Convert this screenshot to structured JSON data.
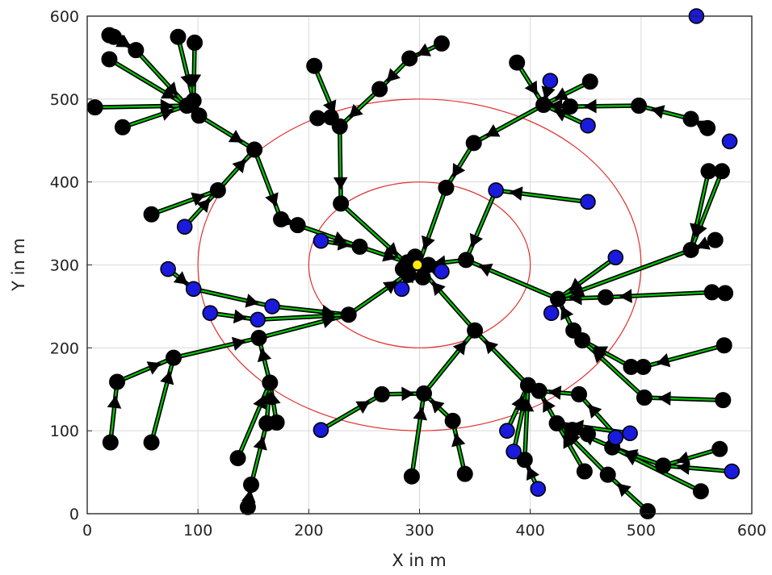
{
  "chart_data": {
    "type": "scatter",
    "xlabel": "X in m",
    "ylabel": "Y in m",
    "xlim": [
      0,
      600
    ],
    "ylim": [
      0,
      600
    ],
    "xticks": [
      0,
      100,
      200,
      300,
      400,
      500,
      600
    ],
    "yticks": [
      0,
      100,
      200,
      300,
      400,
      500,
      600
    ],
    "grid": true,
    "center": [
      300,
      300
    ],
    "circles": [
      {
        "cx": 300,
        "cy": 300,
        "r": 100,
        "color": "#e03030"
      },
      {
        "cx": 300,
        "cy": 300,
        "r": 200,
        "color": "#e03030"
      }
    ],
    "sink": [
      298,
      300
    ],
    "colors": {
      "link": "#00c800",
      "arrow": "#000000",
      "black_node": "#000000",
      "blue_node": "#1a1adc",
      "sink": "#ffee00"
    },
    "blue_nodes": [
      [
        550,
        600
      ],
      [
        418,
        522
      ],
      [
        452,
        468
      ],
      [
        580,
        449
      ],
      [
        369,
        390
      ],
      [
        452,
        376
      ],
      [
        88,
        346
      ],
      [
        73,
        295
      ],
      [
        96,
        271
      ],
      [
        111,
        242
      ],
      [
        167,
        250
      ],
      [
        154,
        234
      ],
      [
        211,
        329
      ],
      [
        284,
        271
      ],
      [
        320,
        292
      ],
      [
        477,
        309
      ],
      [
        419,
        242
      ],
      [
        490,
        97
      ],
      [
        477,
        92
      ],
      [
        379,
        100
      ],
      [
        385,
        75
      ],
      [
        407,
        30
      ],
      [
        211,
        101
      ],
      [
        582,
        51
      ]
    ],
    "black_nodes": [
      [
        297,
        302
      ],
      [
        285,
        295
      ],
      [
        290,
        288
      ],
      [
        303,
        285
      ],
      [
        308,
        300
      ],
      [
        296,
        310
      ],
      [
        324,
        393
      ],
      [
        349,
        447
      ],
      [
        412,
        493
      ],
      [
        454,
        521
      ],
      [
        436,
        491
      ],
      [
        388,
        544
      ],
      [
        498,
        492
      ],
      [
        545,
        476
      ],
      [
        560,
        465
      ],
      [
        342,
        306
      ],
      [
        425,
        259
      ],
      [
        468,
        261
      ],
      [
        545,
        318
      ],
      [
        567,
        330
      ],
      [
        561,
        413
      ],
      [
        573,
        413
      ],
      [
        564,
        267
      ],
      [
        576,
        266
      ],
      [
        350,
        221
      ],
      [
        439,
        221
      ],
      [
        447,
        209
      ],
      [
        398,
        155
      ],
      [
        408,
        148
      ],
      [
        491,
        177
      ],
      [
        502,
        177
      ],
      [
        575,
        203
      ],
      [
        503,
        140
      ],
      [
        574,
        137
      ],
      [
        444,
        144
      ],
      [
        424,
        109
      ],
      [
        438,
        101
      ],
      [
        452,
        96
      ],
      [
        474,
        80
      ],
      [
        520,
        58
      ],
      [
        571,
        78
      ],
      [
        554,
        27
      ],
      [
        506,
        3
      ],
      [
        470,
        47
      ],
      [
        449,
        51
      ],
      [
        395,
        65
      ],
      [
        304,
        145
      ],
      [
        266,
        144
      ],
      [
        330,
        112
      ],
      [
        293,
        45
      ],
      [
        341,
        48
      ],
      [
        236,
        240
      ],
      [
        155,
        212
      ],
      [
        165,
        158
      ],
      [
        171,
        110
      ],
      [
        162,
        109
      ],
      [
        136,
        67
      ],
      [
        148,
        35
      ],
      [
        145,
        8
      ],
      [
        78,
        188
      ],
      [
        58,
        86
      ],
      [
        21,
        86
      ],
      [
        27,
        159
      ],
      [
        289,
        303
      ],
      [
        246,
        322
      ],
      [
        190,
        348
      ],
      [
        175,
        355
      ],
      [
        118,
        390
      ],
      [
        58,
        361
      ],
      [
        151,
        439
      ],
      [
        229,
        374
      ],
      [
        228,
        467
      ],
      [
        220,
        478
      ],
      [
        208,
        477
      ],
      [
        205,
        540
      ],
      [
        264,
        512
      ],
      [
        291,
        549
      ],
      [
        320,
        567
      ],
      [
        101,
        480
      ],
      [
        90,
        492
      ],
      [
        96,
        498
      ],
      [
        7,
        490
      ],
      [
        32,
        466
      ],
      [
        20,
        548
      ],
      [
        20,
        577
      ],
      [
        24,
        575
      ],
      [
        44,
        559
      ],
      [
        82,
        575
      ],
      [
        97,
        568
      ]
    ],
    "links": [
      [
        [
          550,
          600
        ],
        [
          550,
          600
        ]
      ],
      [
        [
          324,
          393
        ],
        [
          300,
          303
        ]
      ],
      [
        [
          349,
          447
        ],
        [
          324,
          393
        ]
      ],
      [
        [
          412,
          493
        ],
        [
          349,
          447
        ]
      ],
      [
        [
          454,
          521
        ],
        [
          412,
          493
        ]
      ],
      [
        [
          418,
          522
        ],
        [
          412,
          493
        ]
      ],
      [
        [
          436,
          491
        ],
        [
          412,
          493
        ]
      ],
      [
        [
          452,
          468
        ],
        [
          412,
          493
        ]
      ],
      [
        [
          498,
          492
        ],
        [
          436,
          491
        ]
      ],
      [
        [
          545,
          476
        ],
        [
          498,
          492
        ]
      ],
      [
        [
          560,
          465
        ],
        [
          545,
          476
        ]
      ],
      [
        [
          388,
          544
        ],
        [
          412,
          493
        ]
      ],
      [
        [
          369,
          390
        ],
        [
          342,
          306
        ]
      ],
      [
        [
          452,
          376
        ],
        [
          369,
          390
        ]
      ],
      [
        [
          342,
          306
        ],
        [
          303,
          300
        ]
      ],
      [
        [
          425,
          259
        ],
        [
          342,
          306
        ]
      ],
      [
        [
          468,
          261
        ],
        [
          425,
          259
        ]
      ],
      [
        [
          477,
          309
        ],
        [
          425,
          259
        ]
      ],
      [
        [
          545,
          318
        ],
        [
          425,
          259
        ]
      ],
      [
        [
          567,
          330
        ],
        [
          545,
          318
        ]
      ],
      [
        [
          561,
          413
        ],
        [
          545,
          318
        ]
      ],
      [
        [
          573,
          413
        ],
        [
          545,
          318
        ]
      ],
      [
        [
          564,
          267
        ],
        [
          468,
          261
        ]
      ],
      [
        [
          576,
          266
        ],
        [
          564,
          267
        ]
      ],
      [
        [
          419,
          242
        ],
        [
          425,
          259
        ]
      ],
      [
        [
          439,
          221
        ],
        [
          425,
          259
        ]
      ],
      [
        [
          447,
          209
        ],
        [
          439,
          221
        ]
      ],
      [
        [
          491,
          177
        ],
        [
          447,
          209
        ]
      ],
      [
        [
          502,
          177
        ],
        [
          491,
          177
        ]
      ],
      [
        [
          575,
          203
        ],
        [
          502,
          177
        ]
      ],
      [
        [
          503,
          140
        ],
        [
          447,
          209
        ]
      ],
      [
        [
          574,
          137
        ],
        [
          503,
          140
        ]
      ],
      [
        [
          350,
          221
        ],
        [
          303,
          292
        ]
      ],
      [
        [
          398,
          155
        ],
        [
          350,
          221
        ]
      ],
      [
        [
          408,
          148
        ],
        [
          398,
          155
        ]
      ],
      [
        [
          444,
          144
        ],
        [
          408,
          148
        ]
      ],
      [
        [
          479,
          92
        ],
        [
          444,
          144
        ]
      ],
      [
        [
          490,
          97
        ],
        [
          424,
          109
        ]
      ],
      [
        [
          424,
          109
        ],
        [
          408,
          148
        ]
      ],
      [
        [
          438,
          101
        ],
        [
          424,
          109
        ]
      ],
      [
        [
          452,
          96
        ],
        [
          424,
          109
        ]
      ],
      [
        [
          474,
          80
        ],
        [
          438,
          101
        ]
      ],
      [
        [
          520,
          58
        ],
        [
          474,
          80
        ]
      ],
      [
        [
          571,
          78
        ],
        [
          520,
          58
        ]
      ],
      [
        [
          582,
          51
        ],
        [
          520,
          58
        ]
      ],
      [
        [
          554,
          27
        ],
        [
          474,
          80
        ]
      ],
      [
        [
          506,
          3
        ],
        [
          470,
          47
        ]
      ],
      [
        [
          470,
          47
        ],
        [
          424,
          109
        ]
      ],
      [
        [
          449,
          51
        ],
        [
          424,
          109
        ]
      ],
      [
        [
          379,
          100
        ],
        [
          398,
          155
        ]
      ],
      [
        [
          385,
          75
        ],
        [
          398,
          155
        ]
      ],
      [
        [
          395,
          65
        ],
        [
          398,
          155
        ]
      ],
      [
        [
          407,
          30
        ],
        [
          395,
          65
        ]
      ],
      [
        [
          304,
          145
        ],
        [
          350,
          221
        ]
      ],
      [
        [
          266,
          144
        ],
        [
          304,
          145
        ]
      ],
      [
        [
          211,
          101
        ],
        [
          266,
          144
        ]
      ],
      [
        [
          330,
          112
        ],
        [
          304,
          145
        ]
      ],
      [
        [
          341,
          48
        ],
        [
          330,
          112
        ]
      ],
      [
        [
          293,
          45
        ],
        [
          304,
          145
        ]
      ],
      [
        [
          284,
          271
        ],
        [
          297,
          302
        ]
      ],
      [
        [
          320,
          292
        ],
        [
          303,
          300
        ]
      ],
      [
        [
          236,
          240
        ],
        [
          290,
          290
        ]
      ],
      [
        [
          155,
          212
        ],
        [
          236,
          240
        ]
      ],
      [
        [
          165,
          158
        ],
        [
          155,
          212
        ]
      ],
      [
        [
          171,
          110
        ],
        [
          165,
          158
        ]
      ],
      [
        [
          162,
          109
        ],
        [
          165,
          158
        ]
      ],
      [
        [
          148,
          35
        ],
        [
          162,
          109
        ]
      ],
      [
        [
          145,
          8
        ],
        [
          148,
          35
        ]
      ],
      [
        [
          136,
          67
        ],
        [
          165,
          158
        ]
      ],
      [
        [
          78,
          188
        ],
        [
          155,
          212
        ]
      ],
      [
        [
          58,
          86
        ],
        [
          78,
          188
        ]
      ],
      [
        [
          27,
          159
        ],
        [
          78,
          188
        ]
      ],
      [
        [
          21,
          86
        ],
        [
          27,
          159
        ]
      ],
      [
        [
          167,
          250
        ],
        [
          236,
          240
        ]
      ],
      [
        [
          154,
          234
        ],
        [
          236,
          240
        ]
      ],
      [
        [
          111,
          242
        ],
        [
          154,
          234
        ]
      ],
      [
        [
          96,
          271
        ],
        [
          167,
          250
        ]
      ],
      [
        [
          73,
          295
        ],
        [
          96,
          271
        ]
      ],
      [
        [
          211,
          329
        ],
        [
          246,
          322
        ]
      ],
      [
        [
          246,
          322
        ],
        [
          289,
          303
        ]
      ],
      [
        [
          289,
          303
        ],
        [
          300,
          300
        ]
      ],
      [
        [
          190,
          348
        ],
        [
          246,
          322
        ]
      ],
      [
        [
          175,
          355
        ],
        [
          190,
          348
        ]
      ],
      [
        [
          151,
          439
        ],
        [
          175,
          355
        ]
      ],
      [
        [
          118,
          390
        ],
        [
          151,
          439
        ]
      ],
      [
        [
          58,
          361
        ],
        [
          118,
          390
        ]
      ],
      [
        [
          88,
          346
        ],
        [
          118,
          390
        ]
      ],
      [
        [
          229,
          374
        ],
        [
          290,
          300
        ]
      ],
      [
        [
          228,
          467
        ],
        [
          229,
          374
        ]
      ],
      [
        [
          220,
          478
        ],
        [
          228,
          467
        ]
      ],
      [
        [
          208,
          477
        ],
        [
          220,
          478
        ]
      ],
      [
        [
          205,
          540
        ],
        [
          228,
          467
        ]
      ],
      [
        [
          264,
          512
        ],
        [
          228,
          467
        ]
      ],
      [
        [
          291,
          549
        ],
        [
          264,
          512
        ]
      ],
      [
        [
          320,
          567
        ],
        [
          291,
          549
        ]
      ],
      [
        [
          101,
          480
        ],
        [
          151,
          439
        ]
      ],
      [
        [
          90,
          492
        ],
        [
          101,
          480
        ]
      ],
      [
        [
          96,
          498
        ],
        [
          101,
          480
        ]
      ],
      [
        [
          7,
          490
        ],
        [
          90,
          492
        ]
      ],
      [
        [
          32,
          466
        ],
        [
          90,
          492
        ]
      ],
      [
        [
          20,
          548
        ],
        [
          90,
          492
        ]
      ],
      [
        [
          20,
          577
        ],
        [
          44,
          559
        ]
      ],
      [
        [
          24,
          575
        ],
        [
          44,
          559
        ]
      ],
      [
        [
          44,
          559
        ],
        [
          90,
          492
        ]
      ],
      [
        [
          82,
          575
        ],
        [
          96,
          498
        ]
      ],
      [
        [
          97,
          568
        ],
        [
          96,
          498
        ]
      ]
    ]
  }
}
